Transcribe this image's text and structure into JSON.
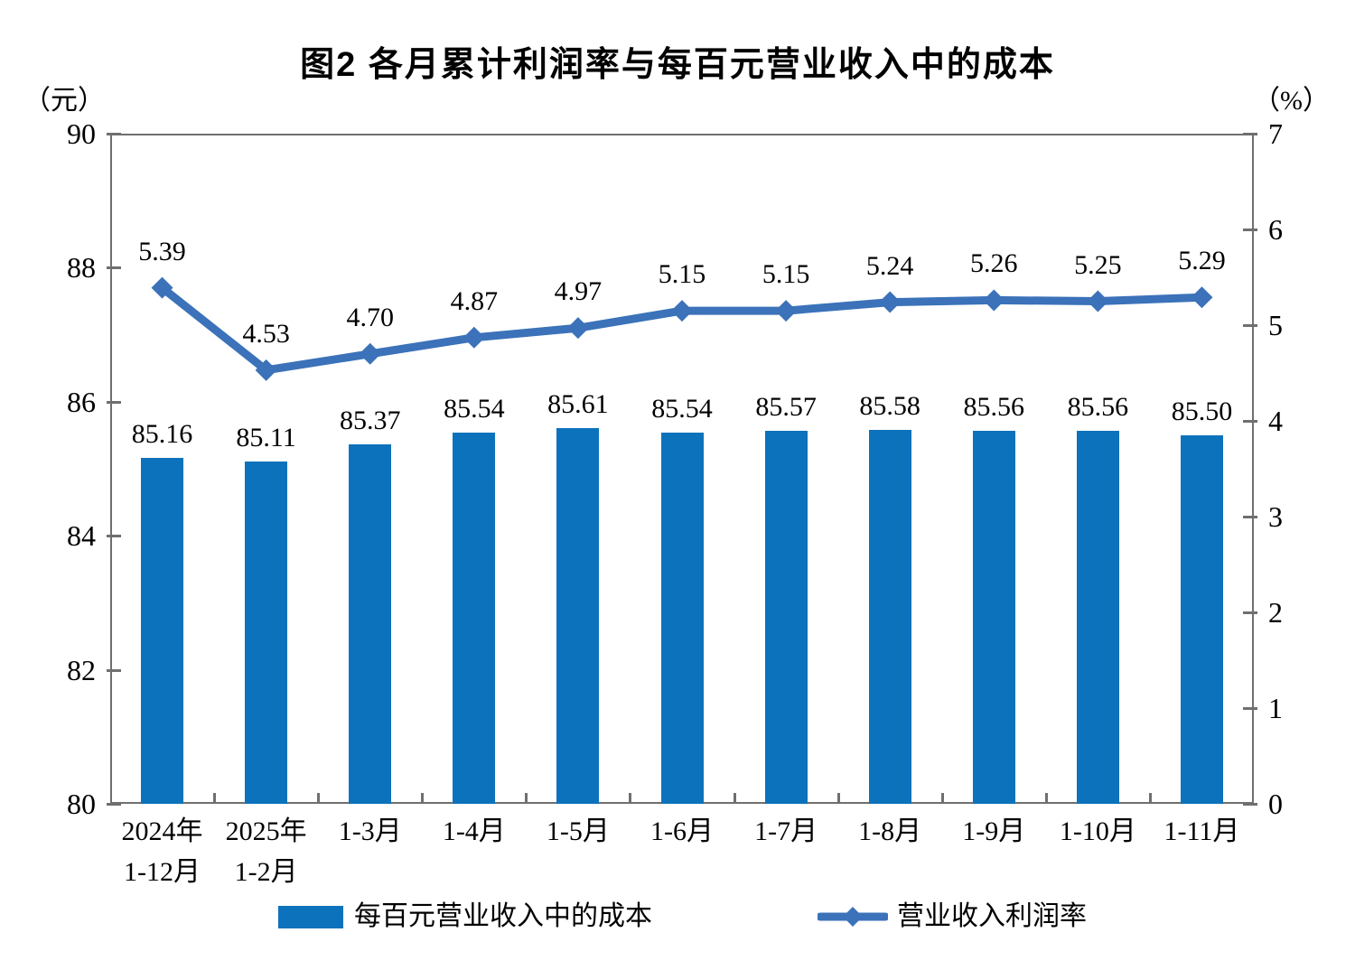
{
  "chart_data": {
    "type": "bar",
    "subtype": "dual_axis_bar_line_combo",
    "title": "图2  各月累计利润率与每百元营业收入中的成本",
    "categories": [
      [
        "2024年",
        "1-12月"
      ],
      [
        "2025年",
        "1-2月"
      ],
      [
        "1-3月"
      ],
      [
        "1-4月"
      ],
      [
        "1-5月"
      ],
      [
        "1-6月"
      ],
      [
        "1-7月"
      ],
      [
        "1-8月"
      ],
      [
        "1-9月"
      ],
      [
        "1-10月"
      ],
      [
        "1-11月"
      ]
    ],
    "series": [
      {
        "name": "每百元营业收入中的成本",
        "type": "bar",
        "axis": "left",
        "values": [
          85.16,
          85.11,
          85.37,
          85.54,
          85.61,
          85.54,
          85.57,
          85.58,
          85.56,
          85.56,
          85.5
        ]
      },
      {
        "name": "营业收入利润率",
        "type": "line",
        "axis": "right",
        "values": [
          5.39,
          4.53,
          4.7,
          4.87,
          4.97,
          5.15,
          5.15,
          5.24,
          5.26,
          5.25,
          5.29
        ]
      }
    ],
    "left_axis": {
      "unit": "（元）",
      "min": 80,
      "max": 90,
      "ticks": [
        90,
        88,
        86,
        84,
        82,
        80
      ]
    },
    "right_axis": {
      "unit": "（%）",
      "min": 0,
      "max": 7,
      "ticks": [
        7,
        6,
        5,
        4,
        3,
        2,
        1,
        0
      ]
    },
    "grid": false,
    "legend_position": "bottom",
    "colors": {
      "bar": "#0D72BC",
      "line": "#3B72B9",
      "axis": "#6F6F6F",
      "text": "#000000"
    }
  }
}
